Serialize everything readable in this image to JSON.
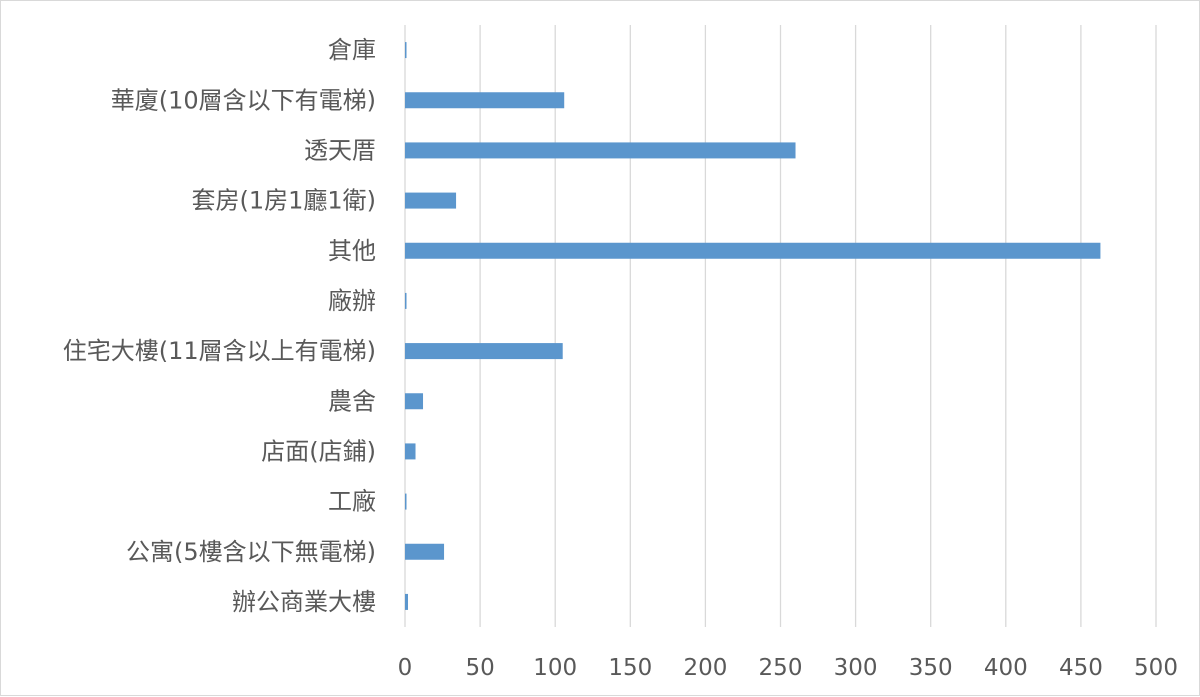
{
  "chart_data": {
    "type": "bar",
    "orientation": "horizontal",
    "title": "",
    "xlabel": "",
    "ylabel": "",
    "categories": [
      "倉庫",
      "華廈(10層含以下有電梯)",
      "透天厝",
      "套房(1房1廳1衛)",
      "其他",
      "廠辦",
      "住宅大樓(11層含以上有電梯)",
      "農舍",
      "店面(店鋪)",
      "工廠",
      "公寓(5樓含以下無電梯)",
      "辦公商業大樓"
    ],
    "values": [
      1,
      106,
      260,
      34,
      463,
      1,
      105,
      12,
      7,
      1,
      26,
      2
    ],
    "xlim": [
      0,
      500
    ],
    "xticks": [
      0,
      50,
      100,
      150,
      200,
      250,
      300,
      350,
      400,
      450,
      500
    ],
    "grid": true,
    "legend": "none",
    "colors": {
      "bar": "#5b96cd",
      "grid": "#d9d9d9",
      "text": "#595959",
      "border": "#d9d9d9"
    }
  }
}
